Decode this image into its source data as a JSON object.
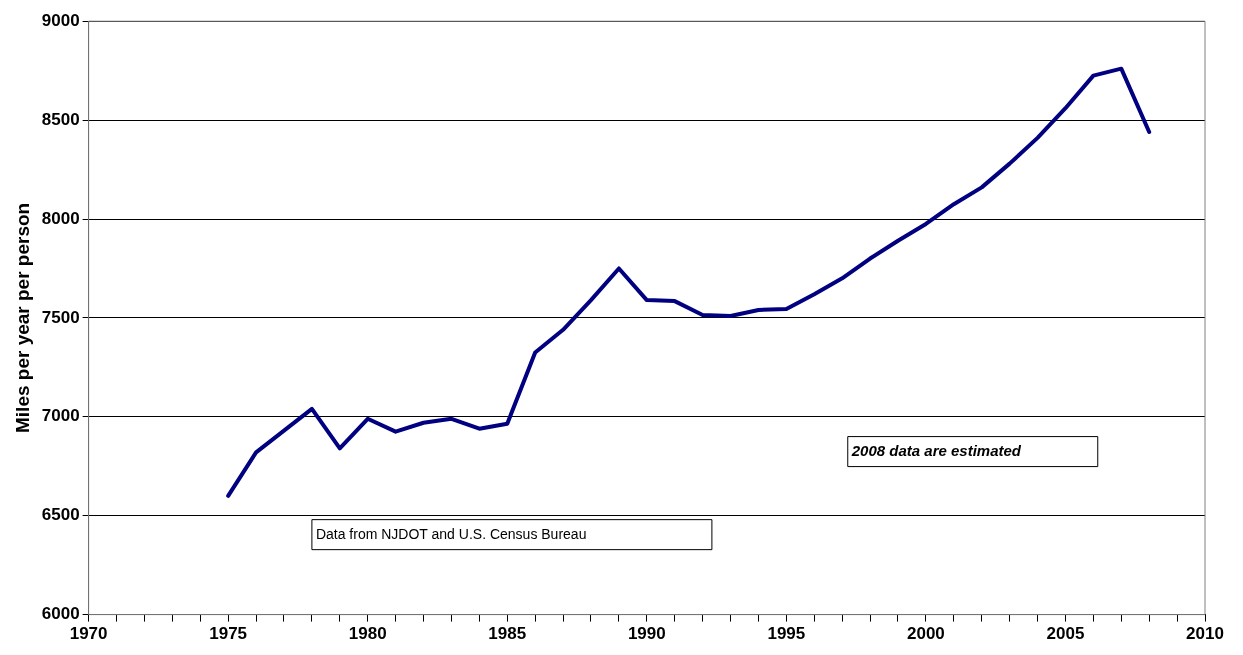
{
  "chart_data": {
    "type": "line",
    "ylabel": "Miles per year per person",
    "x": [
      1975,
      1976,
      1977,
      1978,
      1979,
      1980,
      1981,
      1982,
      1983,
      1984,
      1985,
      1986,
      1987,
      1988,
      1989,
      1990,
      1991,
      1992,
      1993,
      1994,
      1995,
      1996,
      1997,
      1998,
      1999,
      2000,
      2001,
      2002,
      2003,
      2004,
      2005,
      2006,
      2007,
      2008
    ],
    "series": [
      {
        "color": "#000080",
        "values": [
          6600,
          6820,
          6930,
          7040,
          6840,
          6990,
          6925,
          6970,
          6990,
          6940,
          6965,
          7325,
          7440,
          7590,
          7750,
          7590,
          7585,
          7515,
          7510,
          7540,
          7545,
          7620,
          7700,
          7800,
          7890,
          7975,
          8075,
          8160,
          8280,
          8410,
          8560,
          8725,
          8760,
          8440
        ]
      }
    ],
    "xlim": [
      1970,
      2010
    ],
    "xticks": [
      1970,
      {
        "value": 1971,
        "label": null
      },
      {
        "value": 1972,
        "label": null
      },
      {
        "value": 1973,
        "label": null
      },
      {
        "value": 1974,
        "label": null
      },
      1975,
      {
        "value": 1976,
        "label": null
      },
      {
        "value": 1977,
        "label": null
      },
      {
        "value": 1978,
        "label": null
      },
      {
        "value": 1979,
        "label": null
      },
      1980,
      {
        "value": 1981,
        "label": null
      },
      {
        "value": 1982,
        "label": null
      },
      {
        "value": 1983,
        "label": null
      },
      {
        "value": 1984,
        "label": null
      },
      1985,
      {
        "value": 1986,
        "label": null
      },
      {
        "value": 1987,
        "label": null
      },
      {
        "value": 1988,
        "label": null
      },
      {
        "value": 1989,
        "label": null
      },
      1990,
      {
        "value": 1991,
        "label": null
      },
      {
        "value": 1992,
        "label": null
      },
      {
        "value": 1993,
        "label": null
      },
      {
        "value": 1994,
        "label": null
      },
      1995,
      {
        "value": 1996,
        "label": null
      },
      {
        "value": 1997,
        "label": null
      },
      {
        "value": 1998,
        "label": null
      },
      {
        "value": 1999,
        "label": null
      },
      2000,
      {
        "value": 2001,
        "label": null
      },
      {
        "value": 2002,
        "label": null
      },
      {
        "value": 2003,
        "label": null
      },
      {
        "value": 2004,
        "label": null
      },
      2005,
      {
        "value": 2006,
        "label": null
      },
      {
        "value": 2007,
        "label": null
      },
      {
        "value": 2008,
        "label": null
      },
      {
        "value": 2009,
        "label": null
      },
      2010
    ],
    "ylim": [
      6000,
      9000
    ],
    "yticks": [
      6000,
      6500,
      7000,
      7500,
      8000,
      8500,
      9000
    ],
    "grid": "y",
    "legend": false,
    "marker": "none",
    "line_style": "solid",
    "annotations": [
      "Data from NJDOT and U.S. Census Bureau",
      "2008 data are estimated"
    ]
  }
}
